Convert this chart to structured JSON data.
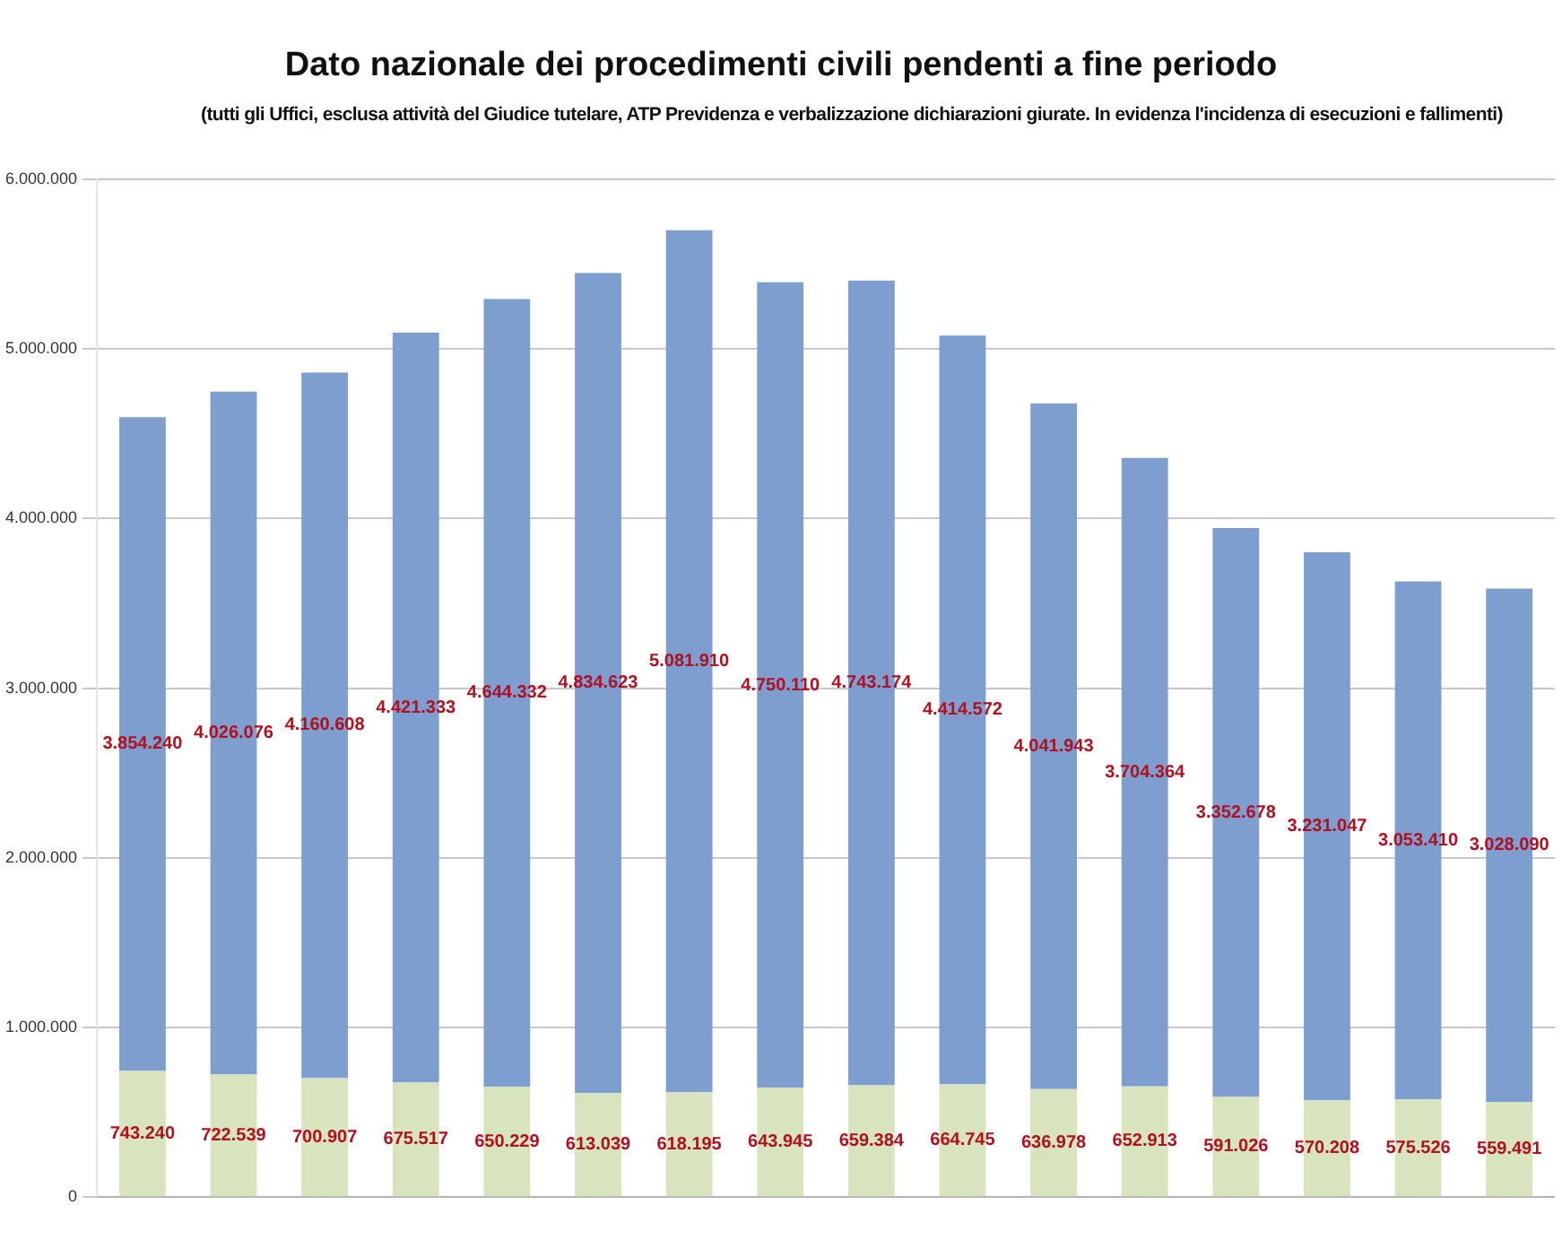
{
  "chart_data": {
    "type": "bar",
    "title": "Dato nazionale dei procedimenti civili pendenti a fine periodo",
    "subtitle": "(tutti gli Uffici, esclusa attività del Giudice tutelare, ATP Previdenza e verbalizzazione dichiarazioni giurate. In evidenza l'incidenza di esecuzioni e fallimenti)",
    "categories": [
      null,
      null,
      null,
      null,
      null,
      null,
      null,
      null,
      null,
      null,
      null,
      null,
      null,
      null,
      null,
      null
    ],
    "stacked": true,
    "series": [
      {
        "color": "#d7e4bd",
        "values": [
          743240,
          722539,
          700907,
          675517,
          650229,
          613039,
          618195,
          643945,
          659384,
          664745,
          636978,
          652913,
          591026,
          570208,
          575526,
          559491
        ],
        "value_labels": [
          "743.240",
          "722.539",
          "700.907",
          "675.517",
          "650.229",
          "613.039",
          "618.195",
          "643.945",
          "659.384",
          "664.745",
          "636.978",
          "652.913",
          "591.026",
          "570.208",
          "575.526",
          "559.491"
        ]
      },
      {
        "color": "#7f9ed0",
        "values": [
          3854240,
          4026076,
          4160608,
          4421333,
          4644332,
          4834623,
          5081910,
          4750110,
          4743174,
          4414572,
          4041943,
          3704364,
          3352678,
          3231047,
          3053410,
          3028090
        ],
        "value_labels": [
          "3.854.240",
          "4.026.076",
          "4.160.608",
          "4.421.333",
          "4.644.332",
          "4.834.623",
          "5.081.910",
          "4.750.110",
          "4.743.174",
          "4.414.572",
          "4.041.943",
          "3.704.364",
          "3.352.678",
          "3.231.047",
          "3.053.410",
          "3.028.090"
        ]
      }
    ],
    "ylim": [
      0,
      6000000
    ],
    "yticks": [
      {
        "value": 0,
        "label": "0"
      },
      {
        "value": 1000000,
        "label": "1.000.000"
      },
      {
        "value": 2000000,
        "label": "2.000.000"
      },
      {
        "value": 3000000,
        "label": "3.000.000"
      },
      {
        "value": 4000000,
        "label": "4.000.000"
      },
      {
        "value": 5000000,
        "label": "5.000.000"
      },
      {
        "value": 6000000,
        "label": "6.000.000"
      }
    ],
    "grid": "y",
    "legend": false
  }
}
